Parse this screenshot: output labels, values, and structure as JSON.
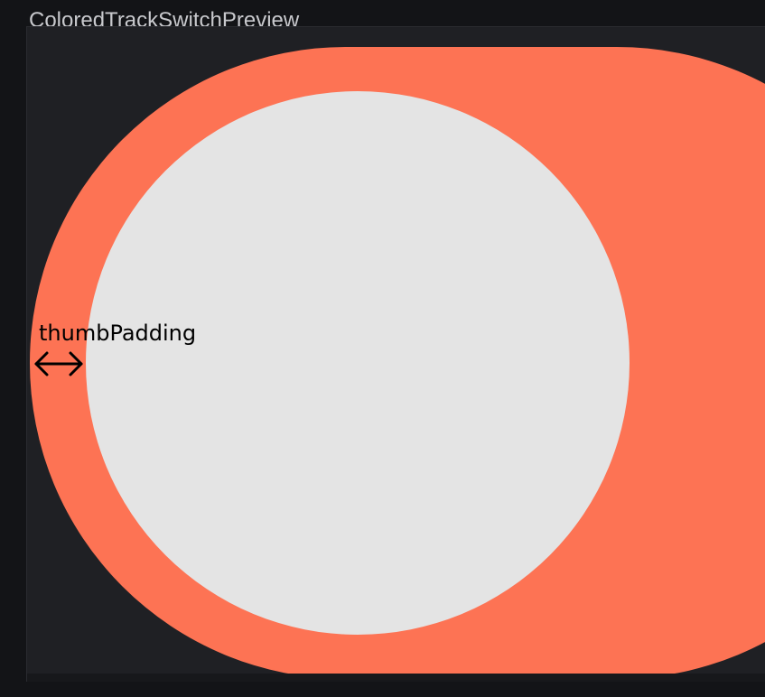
{
  "preview": {
    "title": "ColoredTrackSwitchPreview"
  },
  "switch": {
    "track_color": "#fd7354",
    "thumb_color": "#e4e4e4",
    "background_color": "#1f2024",
    "checked": false
  },
  "annotation": {
    "label": "thumbPadding",
    "icon": "double-arrow-horizontal-icon",
    "color": "#000000"
  }
}
